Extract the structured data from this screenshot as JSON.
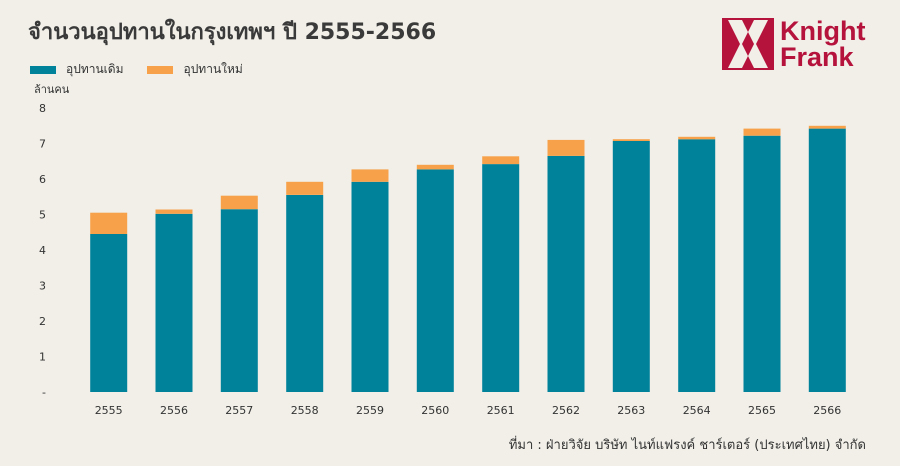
{
  "header": {
    "title": "จำนวนอุปทานในกรุงเทพฯ ปี 2555-2566"
  },
  "legend": {
    "items": [
      {
        "label": "อุปทานเดิม",
        "color": "#00839a"
      },
      {
        "label": "อุปทานใหม่",
        "color": "#f7a24b"
      }
    ]
  },
  "logo": {
    "line1": "Knight",
    "line2": "Frank",
    "color": "#b5123c"
  },
  "footer": {
    "source": "ที่มา : ฝ่ายวิจัย บริษัท ไนท์แฟรงค์ ชาร์เตอร์ (ประเทศไทย) จำกัด"
  },
  "chart_data": {
    "type": "bar",
    "stacked": true,
    "unit_label": "ล้านคน",
    "categories": [
      "2555",
      "2556",
      "2557",
      "2558",
      "2559",
      "2560",
      "2561",
      "2562",
      "2563",
      "2564",
      "2565",
      "2566"
    ],
    "series": [
      {
        "name": "อุปทานเดิม",
        "color": "#00839a",
        "values": [
          4.45,
          5.02,
          5.15,
          5.55,
          5.92,
          6.27,
          6.42,
          6.65,
          7.07,
          7.12,
          7.22,
          7.42
        ]
      },
      {
        "name": "อุปทานใหม่",
        "color": "#f7a24b",
        "values": [
          0.6,
          0.12,
          0.38,
          0.37,
          0.35,
          0.13,
          0.22,
          0.45,
          0.05,
          0.07,
          0.2,
          0.08
        ]
      }
    ],
    "ylim": [
      0,
      8
    ],
    "yticks": [
      {
        "value": 0,
        "label": "-"
      },
      {
        "value": 1,
        "label": "1"
      },
      {
        "value": 2,
        "label": "2"
      },
      {
        "value": 3,
        "label": "3"
      },
      {
        "value": 4,
        "label": "4"
      },
      {
        "value": 5,
        "label": "5"
      },
      {
        "value": 6,
        "label": "6"
      },
      {
        "value": 7,
        "label": "7"
      },
      {
        "value": 8,
        "label": "8"
      }
    ],
    "grid": false,
    "legend_position": "top-left"
  }
}
